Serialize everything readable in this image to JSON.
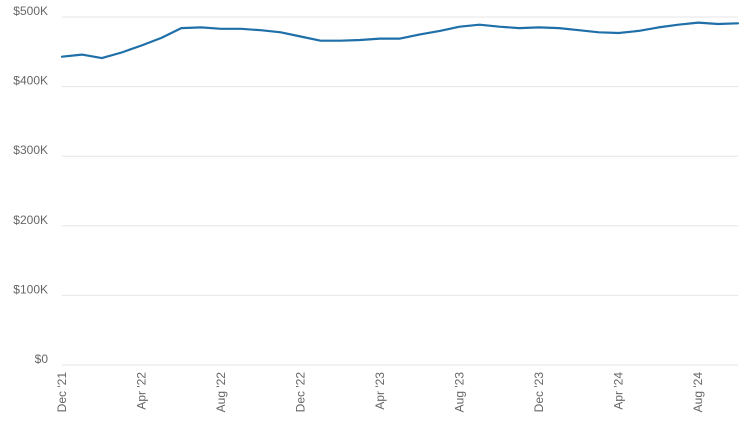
{
  "chart_data": {
    "type": "line",
    "title": "",
    "xlabel": "",
    "ylabel": "",
    "ylim": [
      0,
      500000
    ],
    "grid": true,
    "y_ticks": [
      0,
      100000,
      200000,
      300000,
      400000,
      500000
    ],
    "y_tick_labels": [
      "$0",
      "$100K",
      "$200K",
      "$300K",
      "$400K",
      "$500K"
    ],
    "x_tick_labels": [
      "Dec '21",
      "Apr '22",
      "Aug '22",
      "Dec '22",
      "Apr '23",
      "Aug '23",
      "Dec '23",
      "Apr '24",
      "Aug '24"
    ],
    "x_tick_months": [
      "2021-12",
      "2022-04",
      "2022-08",
      "2022-12",
      "2023-04",
      "2023-08",
      "2023-12",
      "2024-04",
      "2024-08"
    ],
    "x": [
      "2021-12",
      "2022-01",
      "2022-02",
      "2022-03",
      "2022-04",
      "2022-05",
      "2022-06",
      "2022-07",
      "2022-08",
      "2022-09",
      "2022-10",
      "2022-11",
      "2022-12",
      "2023-01",
      "2023-02",
      "2023-03",
      "2023-04",
      "2023-05",
      "2023-06",
      "2023-07",
      "2023-08",
      "2023-09",
      "2023-10",
      "2023-11",
      "2023-12",
      "2024-01",
      "2024-02",
      "2024-03",
      "2024-04",
      "2024-05",
      "2024-06",
      "2024-07",
      "2024-08",
      "2024-09",
      "2024-10"
    ],
    "series": [
      {
        "color": "#1f6fa8",
        "values": [
          443000,
          446000,
          441000,
          449000,
          459000,
          470000,
          484000,
          485000,
          483000,
          483000,
          481000,
          478000,
          472000,
          466000,
          466000,
          467000,
          469000,
          469000,
          475000,
          480000,
          486000,
          489000,
          486000,
          484000,
          485000,
          484000,
          481000,
          478000,
          477000,
          480000,
          485000,
          489000,
          492000,
          490000,
          491000
        ]
      }
    ]
  }
}
